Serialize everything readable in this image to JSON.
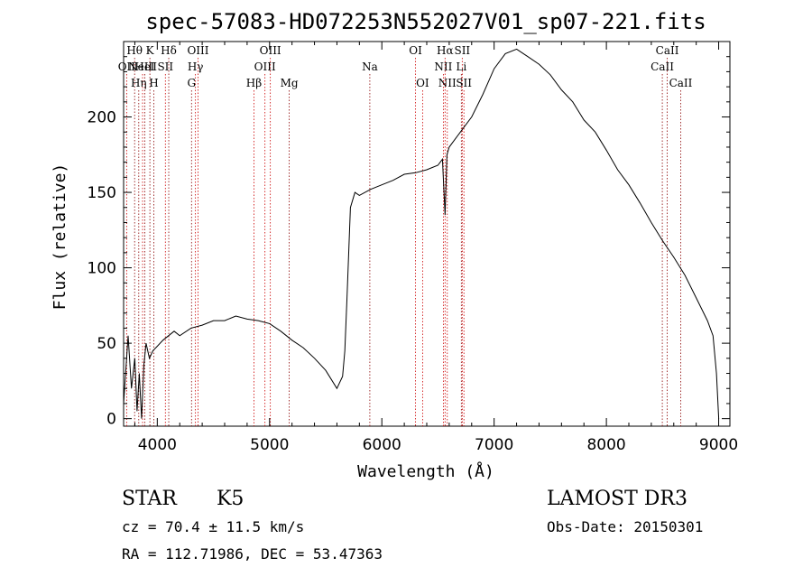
{
  "chart_data": {
    "type": "line",
    "title": "spec-57083-HD072253N552027V01_sp07-221.fits",
    "xlabel": "Wavelength (Å)",
    "ylabel": "Flux (relative)",
    "xlim": [
      3700,
      9100
    ],
    "ylim": [
      -5,
      250
    ],
    "xticks": [
      4000,
      5000,
      6000,
      7000,
      8000,
      9000
    ],
    "yticks": [
      0,
      50,
      100,
      150,
      200
    ],
    "series": [
      {
        "name": "spectrum",
        "x": [
          3700,
          3740,
          3770,
          3800,
          3820,
          3840,
          3860,
          3880,
          3900,
          3930,
          3960,
          4000,
          4050,
          4100,
          4150,
          4200,
          4300,
          4400,
          4500,
          4600,
          4700,
          4800,
          4900,
          5000,
          5100,
          5200,
          5300,
          5400,
          5500,
          5600,
          5650,
          5670,
          5690,
          5720,
          5760,
          5800,
          5900,
          6000,
          6100,
          6200,
          6300,
          6400,
          6500,
          6540,
          6563,
          6580,
          6600,
          6700,
          6800,
          6900,
          7000,
          7100,
          7200,
          7300,
          7400,
          7500,
          7600,
          7700,
          7800,
          7900,
          8000,
          8100,
          8200,
          8300,
          8400,
          8500,
          8600,
          8700,
          8800,
          8900,
          8950,
          8980,
          9000
        ],
        "values": [
          10,
          55,
          20,
          40,
          5,
          30,
          0,
          35,
          50,
          40,
          45,
          48,
          52,
          55,
          58,
          55,
          60,
          62,
          65,
          65,
          68,
          66,
          65,
          63,
          58,
          52,
          47,
          40,
          32,
          20,
          28,
          45,
          80,
          140,
          150,
          148,
          152,
          155,
          158,
          162,
          163,
          165,
          168,
          172,
          135,
          175,
          180,
          190,
          200,
          215,
          232,
          242,
          245,
          240,
          235,
          228,
          218,
          210,
          198,
          190,
          178,
          165,
          155,
          143,
          130,
          118,
          107,
          95,
          80,
          65,
          55,
          30,
          0
        ]
      }
    ],
    "line_groups": [
      {
        "name": "emission-lines",
        "color": "#cc0000",
        "lines": [
          {
            "wl": 3727,
            "label": "OII",
            "row": 2
          },
          {
            "wl": 3869,
            "label": "NeIII",
            "row": 2
          },
          {
            "wl": 4072,
            "label": "SII",
            "row": 2
          },
          {
            "wl": 4340,
            "label": "Hγ",
            "row": 2
          },
          {
            "wl": 4363,
            "label": "OIII",
            "row": 1
          },
          {
            "wl": 4861,
            "label": "Hβ",
            "row": 3
          },
          {
            "wl": 4959,
            "label": "OIII",
            "row": 2
          },
          {
            "wl": 5007,
            "label": "OIII",
            "row": 1
          },
          {
            "wl": 6300,
            "label": "OI",
            "row": 1
          },
          {
            "wl": 6363,
            "label": "OI",
            "row": 3
          },
          {
            "wl": 6548,
            "label": "NII",
            "row": 2
          },
          {
            "wl": 6563,
            "label": "Hα",
            "row": 1
          },
          {
            "wl": 6583,
            "label": "NII",
            "row": 3
          },
          {
            "wl": 6716,
            "label": "SII",
            "row": 1
          },
          {
            "wl": 6731,
            "label": "SII",
            "row": 3
          }
        ]
      },
      {
        "name": "absorption-lines",
        "color": "#8b0000",
        "lines": [
          {
            "wl": 3798,
            "label": "Hθ",
            "row": 1
          },
          {
            "wl": 3835,
            "label": "Hη",
            "row": 3
          },
          {
            "wl": 3889,
            "label": "HeI",
            "row": 2
          },
          {
            "wl": 3934,
            "label": "K",
            "row": 1
          },
          {
            "wl": 3969,
            "label": "H",
            "row": 3
          },
          {
            "wl": 4102,
            "label": "Hδ",
            "row": 1
          },
          {
            "wl": 4305,
            "label": "G",
            "row": 3
          },
          {
            "wl": 5175,
            "label": "Mg",
            "row": 3
          },
          {
            "wl": 5893,
            "label": "Na",
            "row": 2
          },
          {
            "wl": 6708,
            "label": "Li",
            "row": 2
          },
          {
            "wl": 8498,
            "label": "CaII",
            "row": 2
          },
          {
            "wl": 8542,
            "label": "CaII",
            "row": 1
          },
          {
            "wl": 8662,
            "label": "CaII",
            "row": 3
          }
        ]
      }
    ]
  },
  "info": {
    "class": "STAR",
    "subclass": "K5",
    "survey": "LAMOST DR3",
    "cz": "cz = 70.4 ± 11.5 km/s",
    "obsdate": "Obs-Date: 20150301",
    "radec": "RA = 112.71986, DEC =  53.47363"
  }
}
